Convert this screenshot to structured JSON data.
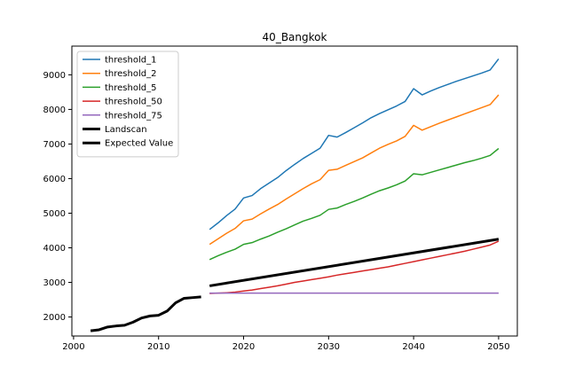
{
  "chart_data": {
    "type": "line",
    "title": "40_Bangkok",
    "xlabel": "",
    "ylabel": "",
    "xlim": [
      1999.8,
      2052.2
    ],
    "ylim": [
      1450,
      9830
    ],
    "xticks": [
      2000,
      2010,
      2020,
      2030,
      2040,
      2050
    ],
    "yticks": [
      2000,
      3000,
      4000,
      5000,
      6000,
      7000,
      8000,
      9000
    ],
    "grid": false,
    "legend_position": "top-left",
    "series": [
      {
        "name": "threshold_1",
        "color": "#1f77b4",
        "line_width": 1.5,
        "x": [
          2016,
          2017,
          2018,
          2019,
          2020,
          2021,
          2022,
          2023,
          2024,
          2025,
          2026,
          2027,
          2028,
          2029,
          2030,
          2031,
          2032,
          2033,
          2034,
          2035,
          2036,
          2037,
          2038,
          2039,
          2040,
          2041,
          2042,
          2043,
          2044,
          2045,
          2046,
          2047,
          2048,
          2049,
          2050
        ],
        "values": [
          4530,
          4720,
          4930,
          5120,
          5440,
          5510,
          5710,
          5870,
          6030,
          6230,
          6410,
          6580,
          6730,
          6880,
          7250,
          7200,
          7330,
          7470,
          7610,
          7760,
          7880,
          7990,
          8100,
          8230,
          8600,
          8420,
          8530,
          8630,
          8720,
          8810,
          8890,
          8970,
          9050,
          9140,
          9460
        ]
      },
      {
        "name": "threshold_2",
        "color": "#ff7f0e",
        "line_width": 1.5,
        "x": [
          2016,
          2017,
          2018,
          2019,
          2020,
          2021,
          2022,
          2023,
          2024,
          2025,
          2026,
          2027,
          2028,
          2029,
          2030,
          2031,
          2032,
          2033,
          2034,
          2035,
          2036,
          2037,
          2038,
          2039,
          2040,
          2041,
          2042,
          2043,
          2044,
          2045,
          2046,
          2047,
          2048,
          2049,
          2050
        ],
        "values": [
          4100,
          4260,
          4420,
          4560,
          4780,
          4830,
          4980,
          5120,
          5250,
          5410,
          5560,
          5710,
          5850,
          5970,
          6240,
          6270,
          6380,
          6490,
          6600,
          6740,
          6880,
          6990,
          7090,
          7220,
          7540,
          7400,
          7500,
          7600,
          7690,
          7780,
          7870,
          7960,
          8050,
          8140,
          8420
        ]
      },
      {
        "name": "threshold_5",
        "color": "#2ca02c",
        "line_width": 1.5,
        "x": [
          2016,
          2017,
          2018,
          2019,
          2020,
          2021,
          2022,
          2023,
          2024,
          2025,
          2026,
          2027,
          2028,
          2029,
          2030,
          2031,
          2032,
          2033,
          2034,
          2035,
          2036,
          2037,
          2038,
          2039,
          2040,
          2041,
          2042,
          2043,
          2044,
          2045,
          2046,
          2047,
          2048,
          2049,
          2050
        ],
        "values": [
          3660,
          3770,
          3870,
          3960,
          4100,
          4150,
          4250,
          4340,
          4450,
          4550,
          4660,
          4770,
          4850,
          4940,
          5110,
          5150,
          5250,
          5340,
          5440,
          5550,
          5650,
          5730,
          5820,
          5930,
          6140,
          6110,
          6180,
          6250,
          6320,
          6390,
          6460,
          6520,
          6590,
          6670,
          6870
        ]
      },
      {
        "name": "threshold_50",
        "color": "#d62728",
        "line_width": 1.5,
        "x": [
          2016,
          2017,
          2018,
          2019,
          2020,
          2021,
          2022,
          2023,
          2024,
          2025,
          2026,
          2027,
          2028,
          2029,
          2030,
          2031,
          2032,
          2033,
          2034,
          2035,
          2036,
          2037,
          2038,
          2039,
          2040,
          2041,
          2042,
          2043,
          2044,
          2045,
          2046,
          2047,
          2048,
          2049,
          2050
        ],
        "values": [
          2680,
          2690,
          2700,
          2720,
          2750,
          2780,
          2820,
          2860,
          2900,
          2950,
          3000,
          3040,
          3080,
          3120,
          3160,
          3210,
          3250,
          3290,
          3330,
          3370,
          3410,
          3450,
          3500,
          3550,
          3600,
          3650,
          3700,
          3750,
          3800,
          3850,
          3900,
          3960,
          4020,
          4080,
          4190
        ]
      },
      {
        "name": "threshold_75",
        "color": "#9467bd",
        "line_width": 1.5,
        "x": [
          2016,
          2050
        ],
        "values": [
          2690,
          2690
        ]
      },
      {
        "name": "Landscan",
        "color": "#000000",
        "line_width": 3,
        "x": [
          2002,
          2003,
          2004,
          2005,
          2006,
          2007,
          2008,
          2009,
          2010,
          2011,
          2012,
          2013,
          2014,
          2015
        ],
        "values": [
          1600,
          1630,
          1710,
          1740,
          1760,
          1850,
          1970,
          2030,
          2050,
          2170,
          2410,
          2540,
          2560,
          2580
        ]
      },
      {
        "name": "Expected Value",
        "color": "#000000",
        "line_width": 3,
        "x": [
          2016,
          2050
        ],
        "values": [
          2900,
          4250
        ]
      }
    ]
  }
}
